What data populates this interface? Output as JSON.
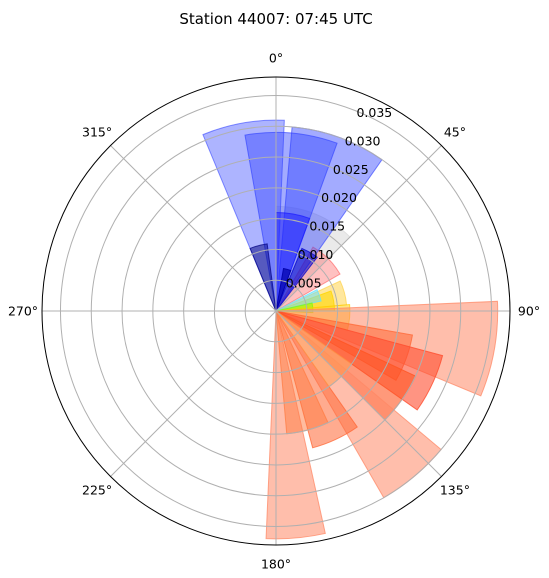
{
  "chart_data": {
    "type": "polar-bar",
    "title": "Station 44007: 07:45 UTC",
    "theta_zero": "N",
    "theta_direction": "clockwise",
    "theta_ticks": [
      0,
      45,
      90,
      135,
      180,
      225,
      270,
      315
    ],
    "theta_tick_labels": [
      "0°",
      "45°",
      "90°",
      "135°",
      "180°",
      "225°",
      "270°",
      "315°"
    ],
    "r_ticks": [
      0.005,
      0.01,
      0.015,
      0.02,
      0.025,
      0.03,
      0.035
    ],
    "r_tick_labels": [
      "0.005",
      "0.010",
      "0.015",
      "0.020",
      "0.025",
      "0.030",
      "0.035"
    ],
    "rlim": [
      0,
      0.038
    ],
    "grid": true,
    "bars": [
      {
        "theta": 22.5,
        "width": 45,
        "r": 0.017,
        "color": "#d9d9d9",
        "alpha": 0.55
      },
      {
        "theta": 45,
        "width": 30,
        "r": 0.012,
        "color": "#ff4d4d",
        "alpha": 0.35
      },
      {
        "theta": 20,
        "width": 30,
        "r": 0.03,
        "color": "#3344ff",
        "alpha": 0.45
      },
      {
        "theta": 5,
        "width": 30,
        "r": 0.029,
        "color": "#3344ff",
        "alpha": 0.45
      },
      {
        "theta": -10,
        "width": 25,
        "r": 0.031,
        "color": "#3344ff",
        "alpha": 0.4
      },
      {
        "theta": -15,
        "width": 15,
        "r": 0.011,
        "color": "#000080",
        "alpha": 0.5
      },
      {
        "theta": 10,
        "width": 20,
        "r": 0.016,
        "color": "#1a1aff",
        "alpha": 0.5
      },
      {
        "theta": 30,
        "width": 15,
        "r": 0.011,
        "color": "#0000cc",
        "alpha": 0.55
      },
      {
        "theta": 15,
        "width": 10,
        "r": 0.007,
        "color": "#0000aa",
        "alpha": 0.7
      },
      {
        "theta": 75,
        "width": 20,
        "r": 0.0115,
        "color": "#ffd34d",
        "alpha": 0.55
      },
      {
        "theta": 80,
        "width": 20,
        "r": 0.0095,
        "color": "#ffd700",
        "alpha": 0.6
      },
      {
        "theta": 70,
        "width": 15,
        "r": 0.0075,
        "color": "#66e0ff",
        "alpha": 0.55
      },
      {
        "theta": 85,
        "width": 15,
        "r": 0.006,
        "color": "#7cfc00",
        "alpha": 0.5
      },
      {
        "theta": 95,
        "width": 20,
        "r": 0.012,
        "color": "#ffcc00",
        "alpha": 0.5
      },
      {
        "theta": 100,
        "width": 25,
        "r": 0.036,
        "color": "#ff8866",
        "alpha": 0.55
      },
      {
        "theta": 110,
        "width": 20,
        "r": 0.0225,
        "color": "#ff6633",
        "alpha": 0.55
      },
      {
        "theta": 115,
        "width": 20,
        "r": 0.028,
        "color": "#ff4d2e",
        "alpha": 0.6
      },
      {
        "theta": 125,
        "width": 20,
        "r": 0.025,
        "color": "#ff5522",
        "alpha": 0.6
      },
      {
        "theta": 140,
        "width": 20,
        "r": 0.035,
        "color": "#ff8866",
        "alpha": 0.55
      },
      {
        "theta": 155,
        "width": 20,
        "r": 0.023,
        "color": "#ff6633",
        "alpha": 0.55
      },
      {
        "theta": 175,
        "width": 15,
        "r": 0.037,
        "color": "#ff8866",
        "alpha": 0.55
      },
      {
        "theta": 165,
        "width": 20,
        "r": 0.02,
        "color": "#ff7a40",
        "alpha": 0.5
      },
      {
        "theta": 135,
        "width": 20,
        "r": 0.015,
        "color": "#ff9a4d",
        "alpha": 0.5
      }
    ]
  }
}
